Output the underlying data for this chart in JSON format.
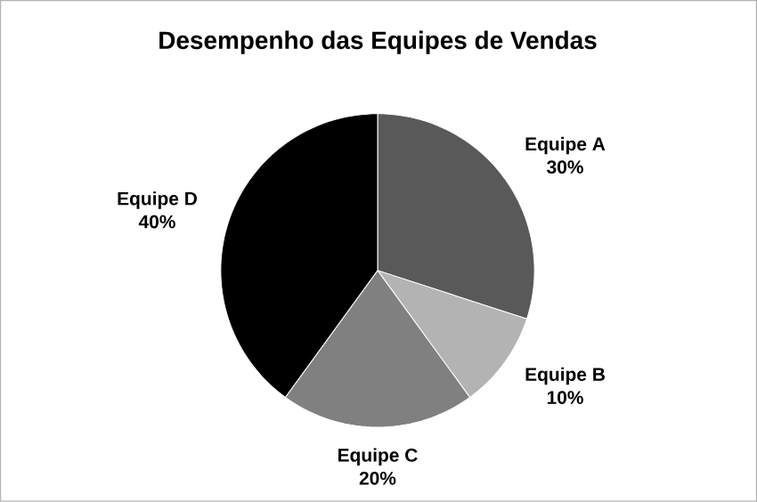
{
  "chart_data": {
    "type": "pie",
    "title": "Desempenho das Equipes de Vendas",
    "categories": [
      "Equipe A",
      "Equipe B",
      "Equipe C",
      "Equipe D"
    ],
    "values": [
      30,
      10,
      20,
      40
    ],
    "value_labels": [
      "30%",
      "10%",
      "20%",
      "40%"
    ],
    "colors": [
      "#595959",
      "#b3b3b3",
      "#808080",
      "#000000"
    ],
    "legend": false
  }
}
